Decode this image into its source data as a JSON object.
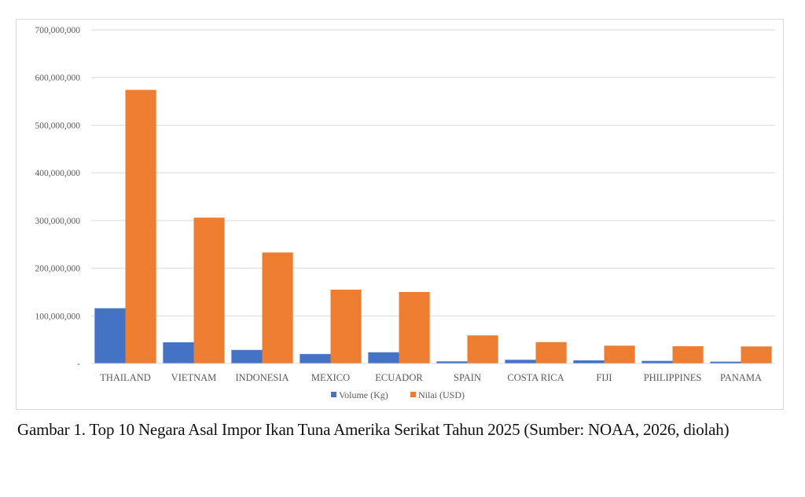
{
  "chart_data": {
    "type": "bar",
    "title": "",
    "xlabel": "",
    "ylabel": "",
    "ylim": [
      0,
      700000000
    ],
    "yticks": [
      0,
      100000000,
      200000000,
      300000000,
      400000000,
      500000000,
      600000000,
      700000000
    ],
    "ytick_labels": [
      "-",
      "100,000,000",
      "200,000,000",
      "300,000,000",
      "400,000,000",
      "500,000,000",
      "600,000,000",
      "700,000,000"
    ],
    "grid": true,
    "legend_position": "bottom",
    "categories": [
      "THAILAND",
      "VIETNAM",
      "INDONESIA",
      "MEXICO",
      "ECUADOR",
      "SPAIN",
      "COSTA RICA",
      "FIJI",
      "PHILIPPINES",
      "PANAMA"
    ],
    "series": [
      {
        "name": "Volume (Kg)",
        "color": "#4472c4",
        "values": [
          116000000,
          44500000,
          28500000,
          20000000,
          23600000,
          4500000,
          7800000,
          6600000,
          5500000,
          3900000
        ]
      },
      {
        "name": "Nilai (USD)",
        "color": "#ed7d31",
        "values": [
          574000000,
          306000000,
          233000000,
          155000000,
          150000000,
          59000000,
          45000000,
          37500000,
          36300000,
          35800000
        ]
      }
    ]
  },
  "caption": "Gambar 1. Top 10 Negara Asal Impor Ikan Tuna Amerika Serikat Tahun 2025 (Sumber: NOAA, 2026, diolah)"
}
